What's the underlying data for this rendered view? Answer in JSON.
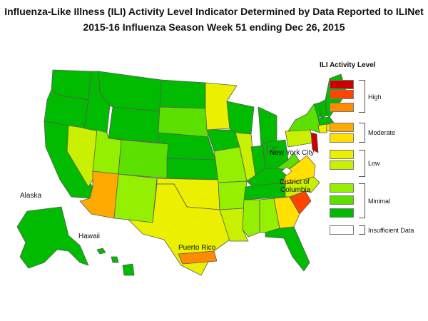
{
  "title": {
    "line1": "Influenza-Like Illness (ILI) Activity Level Indicator Determined by Data Reported to ILINet",
    "line2": "2015-16  Influenza Season Week  51 ending Dec 26, 2015"
  },
  "legend": {
    "title": "ILI Activity Level",
    "levels": [
      {
        "level": 10,
        "color": "#cc0000"
      },
      {
        "level": 9,
        "color": "#ff4400"
      },
      {
        "level": 8,
        "color": "#ff8c00"
      },
      {
        "level": 7,
        "color": "#ffaa00"
      },
      {
        "level": 6,
        "color": "#ffe000"
      },
      {
        "level": 5,
        "color": "#ebf000"
      },
      {
        "level": 4,
        "color": "#c8f000"
      },
      {
        "level": 3,
        "color": "#94f000"
      },
      {
        "level": 2,
        "color": "#5ce000"
      },
      {
        "level": 1,
        "color": "#00bb00"
      },
      {
        "level": 0,
        "color": "#ffffff"
      }
    ],
    "groups": {
      "high": "High",
      "moderate": "Moderate",
      "low": "Low",
      "minimal": "Minimal",
      "insufficient": "Insufficient Data"
    }
  },
  "map_labels": {
    "alaska": "Alaska",
    "hawaii": "Hawaii",
    "puerto_rico": "Puerto Rico",
    "nyc": "New York City",
    "dc_line1": "District of",
    "dc_line2": "Columbia"
  },
  "state_levels": {
    "WA": 1,
    "OR": 1,
    "CA": 1,
    "NV": 4,
    "ID": 1,
    "MT": 1,
    "WY": 1,
    "UT": 3,
    "CO": 2,
    "AZ": 7,
    "NM": 3,
    "ND": 1,
    "SD": 2,
    "NE": 1,
    "KS": 1,
    "OK": 5,
    "TX": 5,
    "MN": 5,
    "IA": 1,
    "MO": 3,
    "AR": 3,
    "LA": 4,
    "WI": 1,
    "IL": 4,
    "MI": 1,
    "IN": 1,
    "OH": 1,
    "KY": 1,
    "TN": 1,
    "MS": 3,
    "AL": 3,
    "GA": 6,
    "FL": 1,
    "SC": 9,
    "NC": 4,
    "VA": 6,
    "WV": 2,
    "PA": 4,
    "NY": 2,
    "NJ": 10,
    "VT": 1,
    "NH": 1,
    "ME": 1,
    "MA": 1,
    "CT": 5,
    "RI": 6,
    "AK": 1,
    "HI": 1,
    "PR": 8,
    "NYC": 1,
    "DC": 0
  }
}
